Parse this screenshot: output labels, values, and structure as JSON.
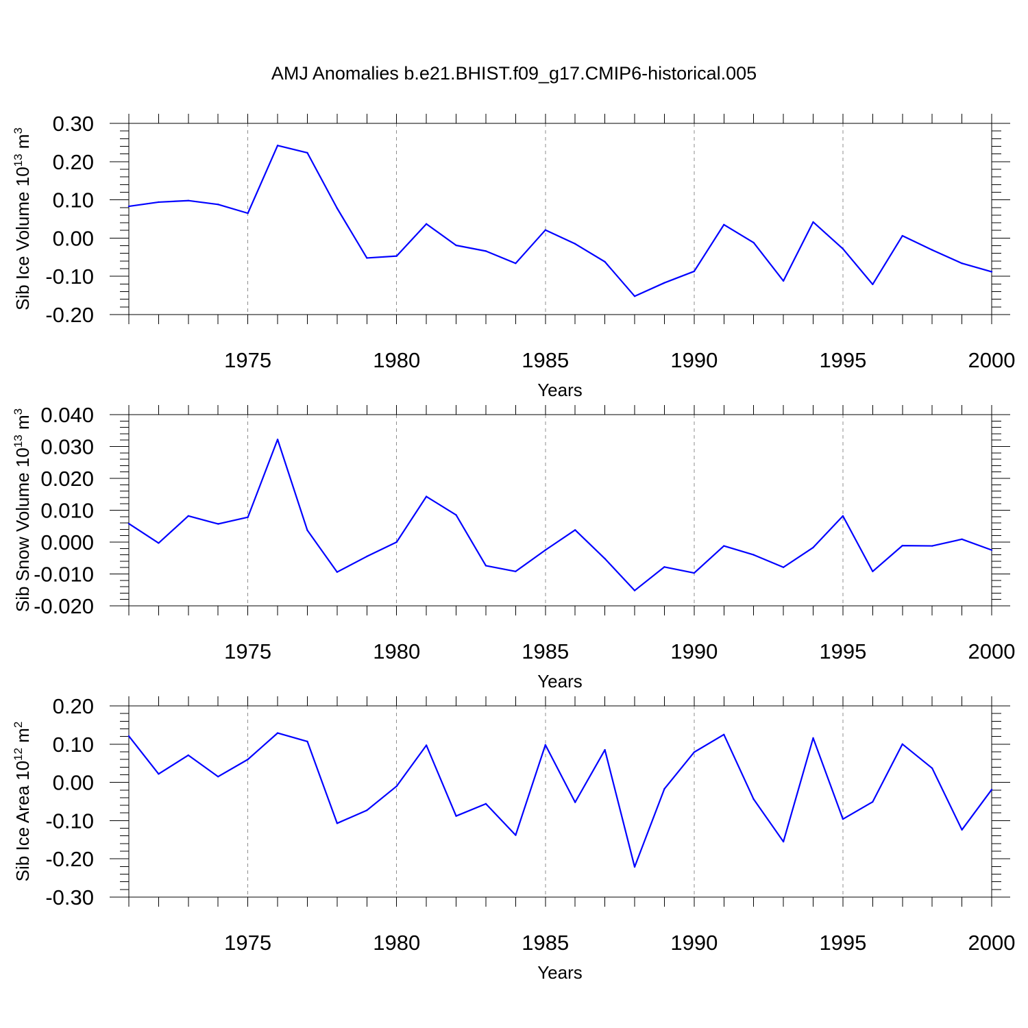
{
  "title": "AMJ Anomalies b.e21.BHIST.f09_g17.CMIP6-historical.005",
  "colors": {
    "line": "#0000ff",
    "grid": "#8c8c8c",
    "axis": "#000000"
  },
  "chart_data": [
    {
      "type": "line",
      "ylabel": "Sib Ice Volume 10",
      "ylabel_exp": "13",
      "ylabel_unit": "m",
      "ylabel_unit_exp": "3",
      "xlabel": "Years",
      "xlim": [
        1971,
        2000
      ],
      "ylim": [
        -0.2,
        0.3
      ],
      "yticks": [
        "-0.20",
        "-0.10",
        "0.00",
        "0.10",
        "0.20",
        "0.30"
      ],
      "xticks": [
        "1975",
        "1980",
        "1985",
        "1990",
        "1995",
        "2000"
      ],
      "grid": "vertical-dashed",
      "x": [
        1971,
        1972,
        1973,
        1974,
        1975,
        1976,
        1977,
        1978,
        1979,
        1980,
        1981,
        1982,
        1983,
        1984,
        1985,
        1986,
        1987,
        1988,
        1989,
        1990,
        1991,
        1992,
        1993,
        1994,
        1995,
        1996,
        1997,
        1998,
        1999,
        2000
      ],
      "values": [
        0.083,
        0.094,
        0.098,
        0.088,
        0.065,
        0.242,
        0.223,
        0.078,
        -0.052,
        -0.047,
        0.037,
        -0.019,
        -0.034,
        -0.066,
        0.021,
        -0.015,
        -0.062,
        -0.152,
        -0.117,
        -0.087,
        0.035,
        -0.012,
        -0.112,
        0.042,
        -0.028,
        -0.121,
        0.006,
        -0.031,
        -0.066,
        -0.088
      ]
    },
    {
      "type": "line",
      "ylabel": "Sib Snow Volume 10",
      "ylabel_exp": "13",
      "ylabel_unit": "m",
      "ylabel_unit_exp": "3",
      "xlabel": "Years",
      "xlim": [
        1971,
        2000
      ],
      "ylim": [
        -0.02,
        0.04
      ],
      "yticks": [
        "-0.020",
        "-0.010",
        "0.000",
        "0.010",
        "0.020",
        "0.030",
        "0.040"
      ],
      "xticks": [
        "1975",
        "1980",
        "1985",
        "1990",
        "1995",
        "2000"
      ],
      "grid": "vertical-dashed",
      "x": [
        1971,
        1972,
        1973,
        1974,
        1975,
        1976,
        1977,
        1978,
        1979,
        1980,
        1981,
        1982,
        1983,
        1984,
        1985,
        1986,
        1987,
        1988,
        1989,
        1990,
        1991,
        1992,
        1993,
        1994,
        1995,
        1996,
        1997,
        1998,
        1999,
        2000
      ],
      "values": [
        0.0058,
        -0.0003,
        0.0082,
        0.0057,
        0.0078,
        0.0322,
        0.0037,
        -0.0094,
        -0.0045,
        0.0,
        0.0143,
        0.0085,
        -0.0074,
        -0.0092,
        -0.0025,
        0.0038,
        -0.0052,
        -0.0152,
        -0.0078,
        -0.0097,
        -0.0012,
        -0.004,
        -0.0079,
        -0.0017,
        0.0082,
        -0.0092,
        -0.0011,
        -0.0012,
        0.0009,
        -0.0025
      ]
    },
    {
      "type": "line",
      "ylabel": "Sib Ice Area 10",
      "ylabel_exp": "12",
      "ylabel_unit": "m",
      "ylabel_unit_exp": "2",
      "xlabel": "Years",
      "xlim": [
        1971,
        2000
      ],
      "ylim": [
        -0.3,
        0.2
      ],
      "yticks": [
        "-0.30",
        "-0.20",
        "-0.10",
        "0.00",
        "0.10",
        "0.20"
      ],
      "xticks": [
        "1975",
        "1980",
        "1985",
        "1990",
        "1995",
        "2000"
      ],
      "grid": "vertical-dashed",
      "x": [
        1971,
        1972,
        1973,
        1974,
        1975,
        1976,
        1977,
        1978,
        1979,
        1980,
        1981,
        1982,
        1983,
        1984,
        1985,
        1986,
        1987,
        1988,
        1989,
        1990,
        1991,
        1992,
        1993,
        1994,
        1995,
        1996,
        1997,
        1998,
        1999,
        2000
      ],
      "values": [
        0.121,
        0.022,
        0.071,
        0.015,
        0.06,
        0.129,
        0.107,
        -0.107,
        -0.073,
        -0.01,
        0.097,
        -0.088,
        -0.056,
        -0.138,
        0.098,
        -0.052,
        0.085,
        -0.221,
        -0.017,
        0.079,
        0.125,
        -0.044,
        -0.155,
        0.116,
        -0.096,
        -0.051,
        0.1,
        0.037,
        -0.124,
        -0.019
      ]
    }
  ]
}
